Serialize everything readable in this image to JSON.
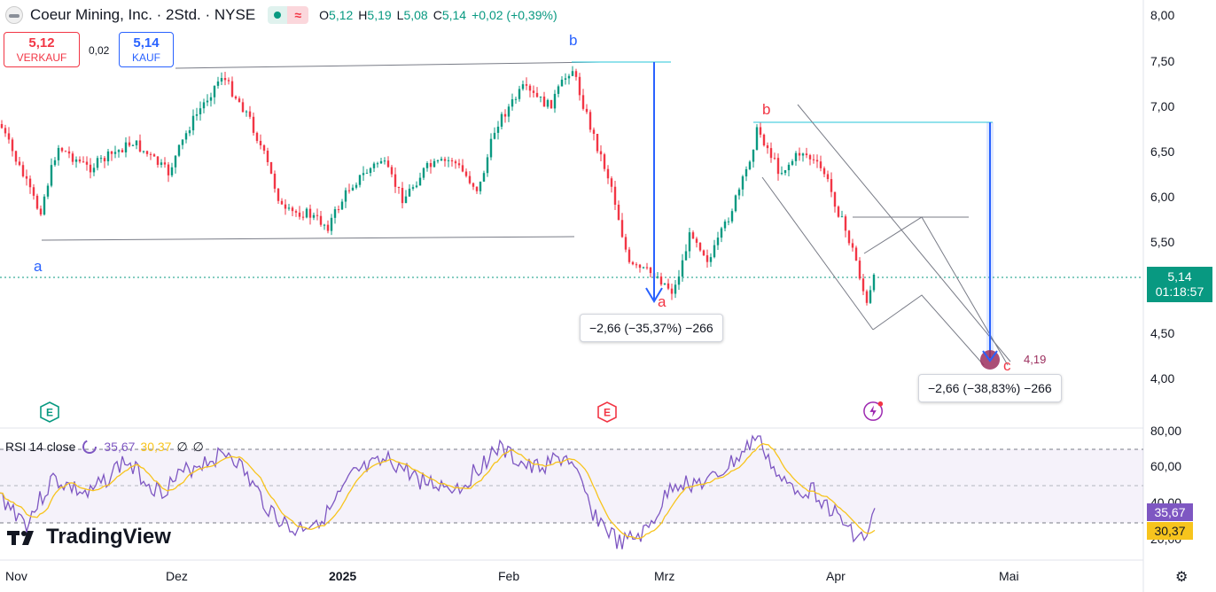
{
  "header": {
    "title": "Coeur Mining, Inc. · 2Std. · NYSE",
    "ohlc": [
      {
        "k": "O",
        "v": "5,12"
      },
      {
        "k": "H",
        "v": "5,19"
      },
      {
        "k": "L",
        "v": "5,08"
      },
      {
        "k": "C",
        "v": "5,14"
      }
    ],
    "change": "+0,02 (+0,39%)",
    "market_status_icon": "market-open-dot-icon",
    "delay_icon": "delay-wave-icon"
  },
  "trade": {
    "sell_price": "5,12",
    "sell_label": "VERKAUF",
    "spread": "0,02",
    "buy_price": "5,14",
    "buy_label": "KAUF"
  },
  "price_axis": [
    "8,00",
    "7,50",
    "7,00",
    "6,50",
    "6,00",
    "5,50",
    "4,50",
    "4,00"
  ],
  "current_price": {
    "price": "5,14",
    "countdown": "01:18:57"
  },
  "time_axis": [
    "Nov",
    "Dez",
    "2025",
    "Feb",
    "Mrz",
    "Apr",
    "Mai"
  ],
  "wave_labels": {
    "a_blue": "a",
    "b_blue": "b",
    "a_red": "a",
    "b_red": "b",
    "c_red": "c"
  },
  "measure_tooltips": [
    "−2,66 (−35,37%) −266",
    "−2,66 (−38,83%) −266"
  ],
  "target_label": "4,19",
  "events": [
    {
      "icon": "earnings-e-icon",
      "label": "E",
      "color": "#089981"
    },
    {
      "icon": "earnings-e-icon",
      "label": "E",
      "color": "#f23645"
    },
    {
      "icon": "lightning-dividend-icon",
      "label": "⚡",
      "color": "#9c27b0"
    }
  ],
  "rsi": {
    "label": "RSI 14 close",
    "value": "35,67",
    "ma_value": "30,37",
    "na1": "∅",
    "na2": "∅",
    "axis": [
      "80,00",
      "60,00",
      "40,00",
      "20,00"
    ],
    "tag_value": "35,67",
    "tag_ma": "30,37"
  },
  "brand": "TradingView",
  "colors": {
    "up": "#089981",
    "down": "#f23645",
    "rsi": "#7e57c2",
    "rsi_ma": "#f7c41d",
    "blue": "#2962ff"
  },
  "chart_data": {
    "type": "candlestick",
    "series": [
      {
        "name": "Coeur Mining, Inc.",
        "x": [
          "Nov",
          "Dez",
          "2025",
          "Feb",
          "Mrz",
          "Apr",
          "Mai"
        ],
        "close_approx": [
          6.3,
          6.4,
          5.7,
          6.4,
          5.1,
          6.5,
          5.14
        ]
      }
    ],
    "ylim": [
      3.7,
      8.1
    ],
    "rsi_ylim": [
      15,
      82
    ]
  }
}
